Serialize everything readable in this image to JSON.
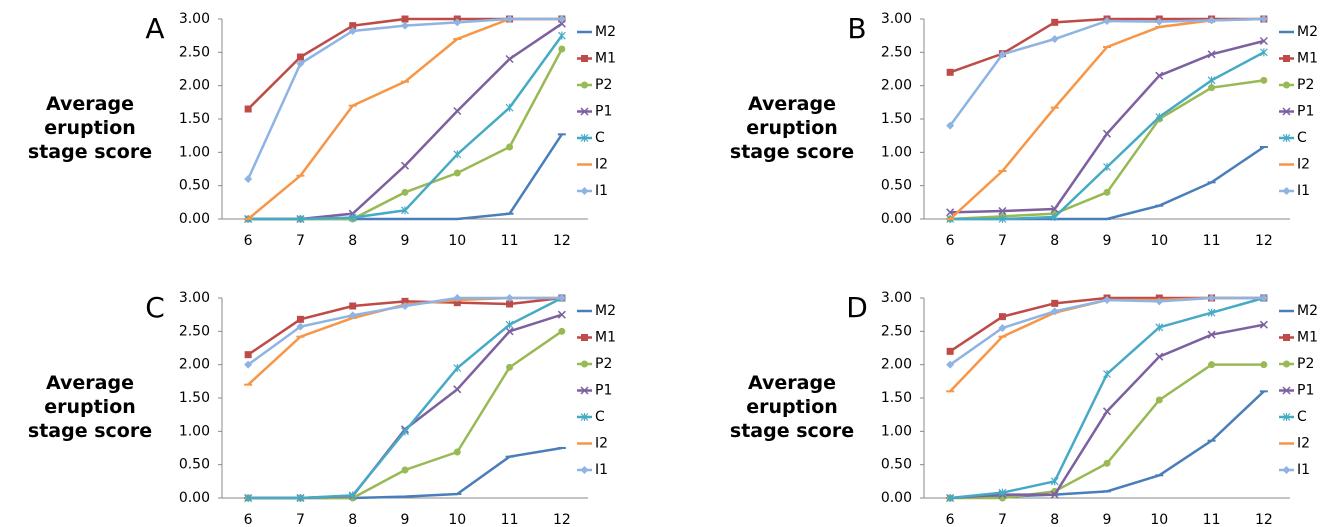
{
  "chart_data": [
    {
      "type": "line",
      "title": "A",
      "ylabel": "Average eruption stage score",
      "categories": [
        "6",
        "7",
        "8",
        "9",
        "10",
        "11",
        "12"
      ],
      "ylim": [
        0,
        3
      ],
      "yticks": [
        {
          "value": 0,
          "label": "0.00"
        },
        {
          "value": 0.5,
          "label": "0.50"
        },
        {
          "value": 1,
          "label": "1.00"
        },
        {
          "value": 1.5,
          "label": "1.50"
        },
        {
          "value": 2,
          "label": "2.00"
        },
        {
          "value": 2.5,
          "label": "2.50"
        },
        {
          "value": 3,
          "label": "3.00"
        }
      ],
      "series": [
        {
          "name": "M2",
          "color": "#4a7ebb",
          "marker": "dash",
          "values": [
            0,
            0,
            0,
            0,
            0,
            0.08,
            1.27
          ]
        },
        {
          "name": "M1",
          "color": "#be4b48",
          "marker": "square",
          "values": [
            1.65,
            2.43,
            2.9,
            3,
            3,
            3,
            3
          ]
        },
        {
          "name": "P2",
          "color": "#98b954",
          "marker": "circle",
          "values": [
            0,
            0,
            0,
            0.4,
            0.69,
            1.08,
            2.55
          ]
        },
        {
          "name": "P1",
          "color": "#7d60a0",
          "marker": "x",
          "values": [
            0,
            0,
            0.08,
            0.8,
            1.62,
            2.4,
            2.93
          ]
        },
        {
          "name": "C",
          "color": "#46aac5",
          "marker": "star",
          "values": [
            0,
            0,
            0.02,
            0.13,
            0.97,
            1.67,
            2.75
          ]
        },
        {
          "name": "I2",
          "color": "#f79646",
          "marker": "dash",
          "values": [
            0,
            0.65,
            1.7,
            2.06,
            2.7,
            3,
            3
          ]
        },
        {
          "name": "I1",
          "color": "#8eb4e3",
          "marker": "diamond",
          "values": [
            0.6,
            2.33,
            2.82,
            2.9,
            2.95,
            3,
            3
          ]
        }
      ]
    },
    {
      "type": "line",
      "title": "B",
      "ylabel": "Average eruption stage score",
      "categories": [
        "6",
        "7",
        "8",
        "9",
        "10",
        "11",
        "12"
      ],
      "ylim": [
        0,
        3
      ],
      "yticks": [
        {
          "value": 0,
          "label": "0.00"
        },
        {
          "value": 0.5,
          "label": "0.50"
        },
        {
          "value": 1,
          "label": "1.00"
        },
        {
          "value": 1.5,
          "label": "1.50"
        },
        {
          "value": 2,
          "label": "2.00"
        },
        {
          "value": 2.5,
          "label": "2.50"
        },
        {
          "value": 3,
          "label": "3.00"
        }
      ],
      "series": [
        {
          "name": "M2",
          "color": "#4a7ebb",
          "marker": "dash",
          "values": [
            0,
            0,
            0,
            0,
            0.2,
            0.55,
            1.08
          ]
        },
        {
          "name": "M1",
          "color": "#be4b48",
          "marker": "square",
          "values": [
            2.2,
            2.48,
            2.95,
            3,
            3,
            3,
            3
          ]
        },
        {
          "name": "P2",
          "color": "#98b954",
          "marker": "circle",
          "values": [
            0,
            0.04,
            0.08,
            0.4,
            1.5,
            1.97,
            2.08
          ]
        },
        {
          "name": "P1",
          "color": "#7d60a0",
          "marker": "x",
          "values": [
            0.1,
            0.12,
            0.15,
            1.28,
            2.15,
            2.47,
            2.67
          ]
        },
        {
          "name": "C",
          "color": "#46aac5",
          "marker": "star",
          "values": [
            0,
            0,
            0.03,
            0.78,
            1.53,
            2.08,
            2.5
          ]
        },
        {
          "name": "I2",
          "color": "#f79646",
          "marker": "dash",
          "values": [
            0,
            0.72,
            1.67,
            2.58,
            2.88,
            2.98,
            3
          ]
        },
        {
          "name": "I1",
          "color": "#8eb4e3",
          "marker": "diamond",
          "values": [
            1.4,
            2.47,
            2.7,
            2.97,
            2.96,
            2.98,
            3
          ]
        }
      ]
    },
    {
      "type": "line",
      "title": "C",
      "ylabel": "Average eruption stage score",
      "categories": [
        "6",
        "7",
        "8",
        "9",
        "10",
        "11",
        "12"
      ],
      "ylim": [
        0,
        3
      ],
      "yticks": [
        {
          "value": 0,
          "label": "0.00"
        },
        {
          "value": 0.5,
          "label": "0.50"
        },
        {
          "value": 1,
          "label": "1.00"
        },
        {
          "value": 1.5,
          "label": "1.50"
        },
        {
          "value": 2,
          "label": "2.00"
        },
        {
          "value": 2.5,
          "label": "2.50"
        },
        {
          "value": 3,
          "label": "3.00"
        }
      ],
      "series": [
        {
          "name": "M2",
          "color": "#4a7ebb",
          "marker": "dash",
          "values": [
            0,
            0,
            0,
            0.02,
            0.06,
            0.62,
            0.75
          ]
        },
        {
          "name": "M1",
          "color": "#be4b48",
          "marker": "square",
          "values": [
            2.15,
            2.68,
            2.88,
            2.95,
            2.93,
            2.91,
            3
          ]
        },
        {
          "name": "P2",
          "color": "#98b954",
          "marker": "circle",
          "values": [
            0,
            0,
            0,
            0.42,
            0.69,
            1.96,
            2.5
          ]
        },
        {
          "name": "P1",
          "color": "#7d60a0",
          "marker": "x",
          "values": [
            0,
            0,
            0.03,
            1.03,
            1.63,
            2.5,
            2.75
          ]
        },
        {
          "name": "C",
          "color": "#46aac5",
          "marker": "star",
          "values": [
            0,
            0,
            0.04,
            1,
            1.95,
            2.6,
            3
          ]
        },
        {
          "name": "I2",
          "color": "#f79646",
          "marker": "dash",
          "values": [
            1.7,
            2.42,
            2.7,
            2.9,
            2.97,
            3,
            3
          ]
        },
        {
          "name": "I1",
          "color": "#8eb4e3",
          "marker": "diamond",
          "values": [
            2,
            2.57,
            2.74,
            2.88,
            3,
            3,
            3
          ]
        }
      ]
    },
    {
      "type": "line",
      "title": "D",
      "ylabel": "Average eruption stage score",
      "categories": [
        "6",
        "7",
        "8",
        "9",
        "10",
        "11",
        "12"
      ],
      "ylim": [
        0,
        3
      ],
      "yticks": [
        {
          "value": 0,
          "label": "0.00"
        },
        {
          "value": 0.5,
          "label": "0.50"
        },
        {
          "value": 1,
          "label": "1.00"
        },
        {
          "value": 1.5,
          "label": "1.50"
        },
        {
          "value": 2,
          "label": "2.00"
        },
        {
          "value": 2.5,
          "label": "2.50"
        },
        {
          "value": 3,
          "label": "3.00"
        }
      ],
      "series": [
        {
          "name": "M2",
          "color": "#4a7ebb",
          "marker": "dash",
          "values": [
            0,
            0.02,
            0.05,
            0.1,
            0.34,
            0.86,
            1.6
          ]
        },
        {
          "name": "M1",
          "color": "#be4b48",
          "marker": "square",
          "values": [
            2.2,
            2.72,
            2.92,
            3,
            3,
            3,
            3
          ]
        },
        {
          "name": "P2",
          "color": "#98b954",
          "marker": "circle",
          "values": [
            0,
            0,
            0.1,
            0.52,
            1.47,
            2,
            2
          ]
        },
        {
          "name": "P1",
          "color": "#7d60a0",
          "marker": "x",
          "values": [
            0,
            0.05,
            0.05,
            1.3,
            2.12,
            2.45,
            2.6
          ]
        },
        {
          "name": "C",
          "color": "#46aac5",
          "marker": "star",
          "values": [
            0,
            0.08,
            0.25,
            1.86,
            2.56,
            2.78,
            3
          ]
        },
        {
          "name": "I2",
          "color": "#f79646",
          "marker": "dash",
          "values": [
            1.6,
            2.42,
            2.78,
            2.97,
            2.97,
            3,
            3
          ]
        },
        {
          "name": "I1",
          "color": "#8eb4e3",
          "marker": "diamond",
          "values": [
            2,
            2.55,
            2.8,
            2.97,
            2.95,
            3,
            3
          ]
        }
      ]
    }
  ]
}
